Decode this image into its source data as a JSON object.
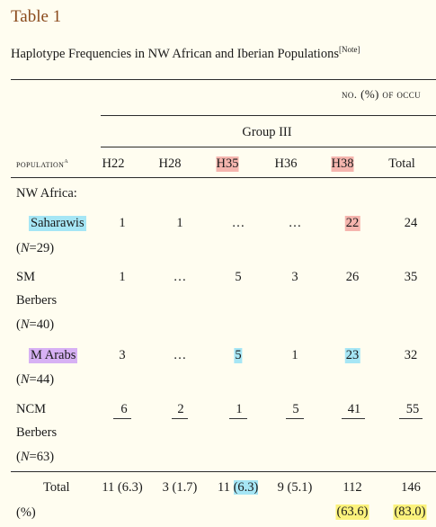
{
  "table": {
    "title": "Table 1",
    "caption": "Haplotype Frequencies in NW African and Iberian Populations",
    "caption_note": "[Note]",
    "spanner": "no. (%) of occu",
    "group": "Group III",
    "pop_header": "population",
    "pop_header_sup": "a",
    "columns": [
      "H22",
      "H28",
      "H35",
      "H36",
      "H38",
      "Total"
    ],
    "section": "NW Africa:",
    "rows": [
      {
        "pop": "Saharawis",
        "n": "29",
        "values": [
          "1",
          "1",
          "…",
          "…",
          "22",
          "24"
        ]
      },
      {
        "pop_lines": [
          "SM",
          "Berbers"
        ],
        "n": "40",
        "values": [
          "1",
          "…",
          "5",
          "3",
          "26",
          "35"
        ]
      },
      {
        "pop": "M Arabs",
        "n": "44",
        "values": [
          "3",
          "…",
          "5",
          "1",
          "23",
          "32"
        ]
      },
      {
        "pop_lines": [
          "NCM",
          "Berbers"
        ],
        "n": "63",
        "values": [
          "6",
          "2",
          "1",
          "5",
          "41",
          "55"
        ]
      }
    ],
    "total_label": "Total",
    "total_unit": "(%)",
    "totals": [
      "11 (6.3)",
      "3 (1.7)",
      "11",
      "(6.3)",
      "9 (5.1)",
      "112",
      "(63.6)",
      "146",
      "(83.0)"
    ]
  },
  "colors": {
    "title": "#8a4a1c",
    "pink": "#f5b5ae",
    "cyan": "#a6e6f5",
    "purple": "#d7b1f4",
    "yellow": "#fbf27c"
  }
}
